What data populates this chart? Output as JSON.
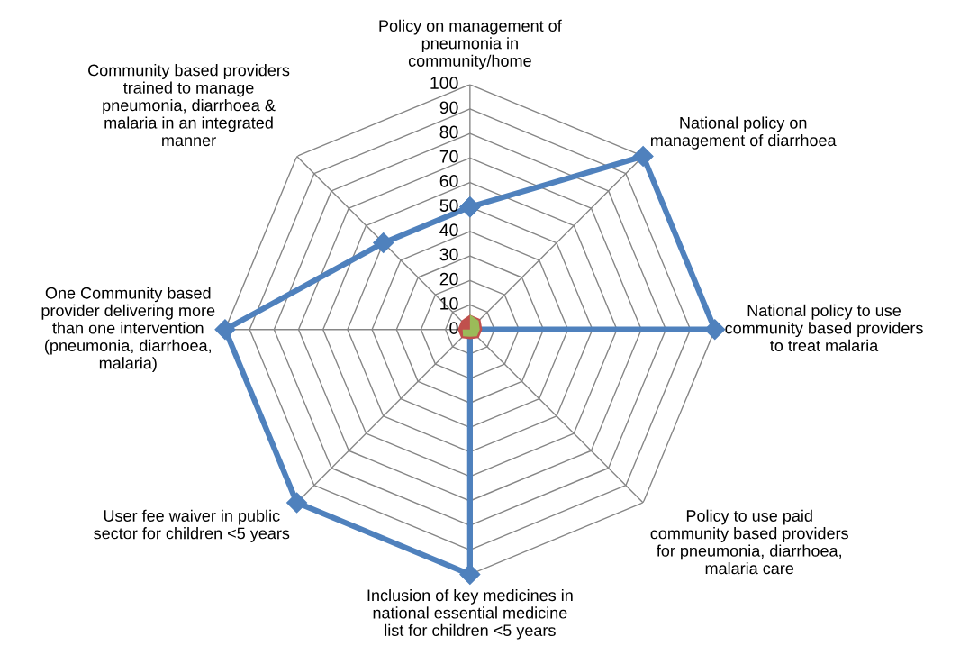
{
  "chart_data": {
    "type": "radar",
    "categories": [
      "Policy on management of\npneumonia in\ncommunity/home",
      "National policy on\nmanagement of diarrhoea",
      "National policy to use\ncommunity based providers\nto treat malaria",
      "Policy to use paid\ncommunity based providers\nfor pneumonia, diarrhoea,\nmalaria care",
      "Inclusion of key medicines in\nnational essential medicine\nlist for children <5 years",
      "User fee waiver in public\nsector for children <5 years",
      "One Community based\nprovider delivering more\nthan one intervention\n(pneumonia, diarrhoea,\nmalaria)",
      "Community based providers\ntrained to manage\npneumonia, diarrhoea &\nmalaria in an integrated\nmanner"
    ],
    "series": [
      {
        "color": "#c0504d",
        "type": "area",
        "values": [
          6,
          6,
          5,
          5,
          4,
          5,
          5,
          5
        ]
      },
      {
        "color": "#9bbb59",
        "type": "area",
        "values": [
          6,
          5,
          4,
          4,
          3,
          4,
          3,
          0
        ]
      },
      {
        "color": "#4f81bd",
        "type": "radar",
        "marker": "diamond",
        "values": [
          50,
          100,
          100,
          0,
          100,
          100,
          100,
          50
        ]
      }
    ],
    "ylim": [
      0,
      100
    ],
    "yticks": [
      0,
      10,
      20,
      30,
      40,
      50,
      60,
      70,
      80,
      90,
      100
    ],
    "grid": true,
    "legend": false
  }
}
